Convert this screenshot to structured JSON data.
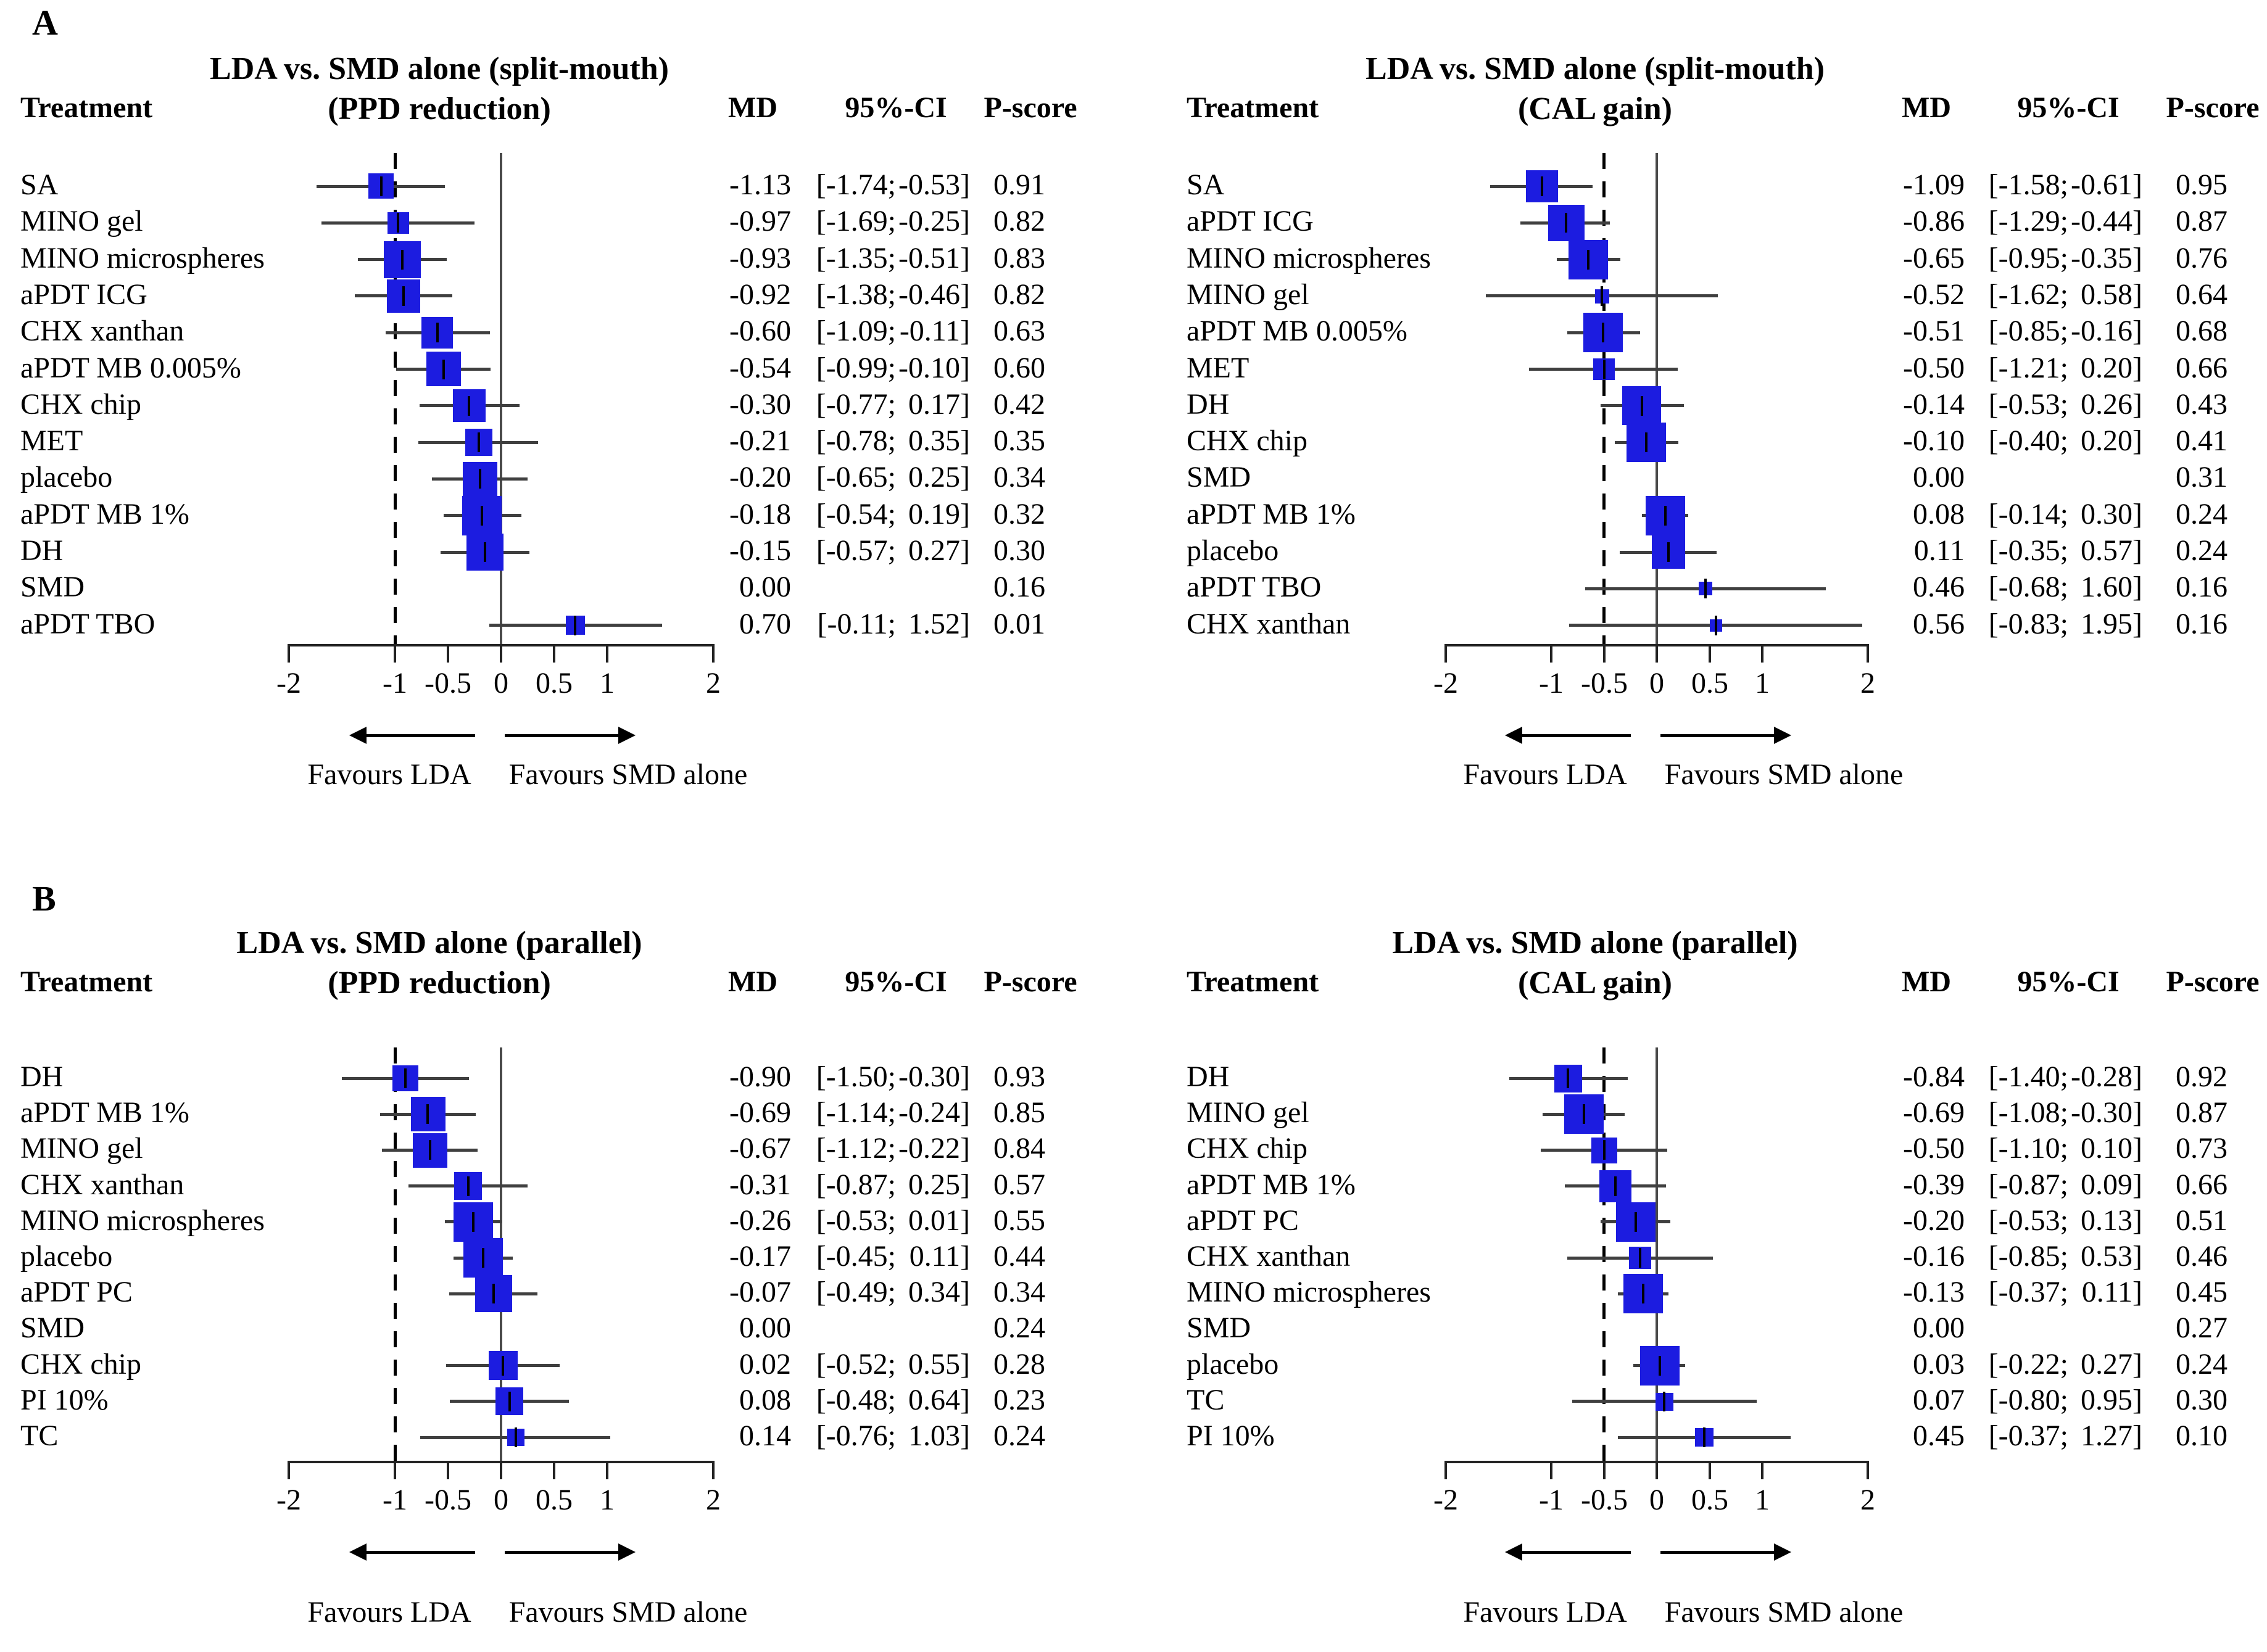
{
  "figure": {
    "panel_a_label": "A",
    "panel_b_label": "B",
    "marker_color": "#1c1ce0",
    "line_color": "#3f3f3f"
  },
  "chart_data": [
    {
      "type": "forest",
      "panel_group": "A",
      "title_line1": "LDA vs. SMD alone (split-mouth)",
      "title_line2": "(PPD reduction)",
      "columns": {
        "treatment": "Treatment",
        "md": "MD",
        "ci": "95%-CI",
        "pscore": "P-score"
      },
      "xlim": [
        -2,
        2
      ],
      "x_ticks": [
        -2,
        -1,
        -0.5,
        0,
        0.5,
        1,
        2
      ],
      "null_line": 0,
      "reference_dashed_line": -1,
      "favours_left": "Favours LDA",
      "favours_right": "Favours SMD alone",
      "rows": [
        {
          "treatment": "SA",
          "md": -1.13,
          "ci_lower": -1.74,
          "ci_upper": -0.53,
          "p_score": "0.91"
        },
        {
          "treatment": "MINO gel",
          "md": -0.97,
          "ci_lower": -1.69,
          "ci_upper": -0.25,
          "p_score": "0.82"
        },
        {
          "treatment": "MINO microspheres",
          "md": -0.93,
          "ci_lower": -1.35,
          "ci_upper": -0.51,
          "p_score": "0.83"
        },
        {
          "treatment": "aPDT ICG",
          "md": -0.92,
          "ci_lower": -1.38,
          "ci_upper": -0.46,
          "p_score": "0.82"
        },
        {
          "treatment": "CHX xanthan",
          "md": -0.6,
          "ci_lower": -1.09,
          "ci_upper": -0.11,
          "p_score": "0.63"
        },
        {
          "treatment": "aPDT MB 0.005%",
          "md": -0.54,
          "ci_lower": -0.99,
          "ci_upper": -0.1,
          "p_score": "0.60"
        },
        {
          "treatment": "CHX chip",
          "md": -0.3,
          "ci_lower": -0.77,
          "ci_upper": 0.17,
          "p_score": "0.42"
        },
        {
          "treatment": "MET",
          "md": -0.21,
          "ci_lower": -0.78,
          "ci_upper": 0.35,
          "p_score": "0.35"
        },
        {
          "treatment": "placebo",
          "md": -0.2,
          "ci_lower": -0.65,
          "ci_upper": 0.25,
          "p_score": "0.34"
        },
        {
          "treatment": "aPDT MB 1%",
          "md": -0.18,
          "ci_lower": -0.54,
          "ci_upper": 0.19,
          "p_score": "0.32"
        },
        {
          "treatment": "DH",
          "md": -0.15,
          "ci_lower": -0.57,
          "ci_upper": 0.27,
          "p_score": "0.30"
        },
        {
          "treatment": "SMD",
          "md": 0.0,
          "ci_lower": null,
          "ci_upper": null,
          "p_score": "0.16"
        },
        {
          "treatment": "aPDT TBO",
          "md": 0.7,
          "ci_lower": -0.11,
          "ci_upper": 1.52,
          "p_score": "0.01"
        }
      ]
    },
    {
      "type": "forest",
      "panel_group": "A",
      "title_line1": "LDA vs. SMD alone (split-mouth)",
      "title_line2": "(CAL gain)",
      "columns": {
        "treatment": "Treatment",
        "md": "MD",
        "ci": "95%-CI",
        "pscore": "P-score"
      },
      "xlim": [
        -2,
        2
      ],
      "x_ticks": [
        -2,
        -1,
        -0.5,
        0,
        0.5,
        1,
        2
      ],
      "null_line": 0,
      "reference_dashed_line": -0.5,
      "favours_left": "Favours LDA",
      "favours_right": "Favours SMD alone",
      "rows": [
        {
          "treatment": "SA",
          "md": -1.09,
          "ci_lower": -1.58,
          "ci_upper": -0.61,
          "p_score": "0.95"
        },
        {
          "treatment": "aPDT ICG",
          "md": -0.86,
          "ci_lower": -1.29,
          "ci_upper": -0.44,
          "p_score": "0.87"
        },
        {
          "treatment": "MINO microspheres",
          "md": -0.65,
          "ci_lower": -0.95,
          "ci_upper": -0.35,
          "p_score": "0.76"
        },
        {
          "treatment": "MINO gel",
          "md": -0.52,
          "ci_lower": -1.62,
          "ci_upper": 0.58,
          "p_score": "0.64"
        },
        {
          "treatment": "aPDT MB 0.005%",
          "md": -0.51,
          "ci_lower": -0.85,
          "ci_upper": -0.16,
          "p_score": "0.68"
        },
        {
          "treatment": "MET",
          "md": -0.5,
          "ci_lower": -1.21,
          "ci_upper": 0.2,
          "p_score": "0.66"
        },
        {
          "treatment": "DH",
          "md": -0.14,
          "ci_lower": -0.53,
          "ci_upper": 0.26,
          "p_score": "0.43"
        },
        {
          "treatment": "CHX chip",
          "md": -0.1,
          "ci_lower": -0.4,
          "ci_upper": 0.2,
          "p_score": "0.41"
        },
        {
          "treatment": "SMD",
          "md": 0.0,
          "ci_lower": null,
          "ci_upper": null,
          "p_score": "0.31"
        },
        {
          "treatment": "aPDT MB 1%",
          "md": 0.08,
          "ci_lower": -0.14,
          "ci_upper": 0.3,
          "p_score": "0.24"
        },
        {
          "treatment": "placebo",
          "md": 0.11,
          "ci_lower": -0.35,
          "ci_upper": 0.57,
          "p_score": "0.24"
        },
        {
          "treatment": "aPDT TBO",
          "md": 0.46,
          "ci_lower": -0.68,
          "ci_upper": 1.6,
          "p_score": "0.16"
        },
        {
          "treatment": "CHX xanthan",
          "md": 0.56,
          "ci_lower": -0.83,
          "ci_upper": 1.95,
          "p_score": "0.16"
        }
      ]
    },
    {
      "type": "forest",
      "panel_group": "B",
      "title_line1": "LDA vs. SMD alone (parallel)",
      "title_line2": "(PPD reduction)",
      "columns": {
        "treatment": "Treatment",
        "md": "MD",
        "ci": "95%-CI",
        "pscore": "P-score"
      },
      "xlim": [
        -2,
        2
      ],
      "x_ticks": [
        -2,
        -1,
        -0.5,
        0,
        0.5,
        1,
        2
      ],
      "null_line": 0,
      "reference_dashed_line": -1,
      "favours_left": "Favours LDA",
      "favours_right": "Favours SMD alone",
      "rows": [
        {
          "treatment": "DH",
          "md": -0.9,
          "ci_lower": -1.5,
          "ci_upper": -0.3,
          "p_score": "0.93"
        },
        {
          "treatment": "aPDT MB 1%",
          "md": -0.69,
          "ci_lower": -1.14,
          "ci_upper": -0.24,
          "p_score": "0.85"
        },
        {
          "treatment": "MINO gel",
          "md": -0.67,
          "ci_lower": -1.12,
          "ci_upper": -0.22,
          "p_score": "0.84"
        },
        {
          "treatment": "CHX xanthan",
          "md": -0.31,
          "ci_lower": -0.87,
          "ci_upper": 0.25,
          "p_score": "0.57"
        },
        {
          "treatment": "MINO microspheres",
          "md": -0.26,
          "ci_lower": -0.53,
          "ci_upper": 0.01,
          "p_score": "0.55"
        },
        {
          "treatment": "placebo",
          "md": -0.17,
          "ci_lower": -0.45,
          "ci_upper": 0.11,
          "p_score": "0.44"
        },
        {
          "treatment": "aPDT PC",
          "md": -0.07,
          "ci_lower": -0.49,
          "ci_upper": 0.34,
          "p_score": "0.34"
        },
        {
          "treatment": "SMD",
          "md": 0.0,
          "ci_lower": null,
          "ci_upper": null,
          "p_score": "0.24"
        },
        {
          "treatment": "CHX chip",
          "md": 0.02,
          "ci_lower": -0.52,
          "ci_upper": 0.55,
          "p_score": "0.28"
        },
        {
          "treatment": "PI 10%",
          "md": 0.08,
          "ci_lower": -0.48,
          "ci_upper": 0.64,
          "p_score": "0.23"
        },
        {
          "treatment": "TC",
          "md": 0.14,
          "ci_lower": -0.76,
          "ci_upper": 1.03,
          "p_score": "0.24"
        }
      ]
    },
    {
      "type": "forest",
      "panel_group": "B",
      "title_line1": "LDA vs. SMD alone (parallel)",
      "title_line2": "(CAL gain)",
      "columns": {
        "treatment": "Treatment",
        "md": "MD",
        "ci": "95%-CI",
        "pscore": "P-score"
      },
      "xlim": [
        -2,
        2
      ],
      "x_ticks": [
        -2,
        -1,
        -0.5,
        0,
        0.5,
        1,
        2
      ],
      "null_line": 0,
      "reference_dashed_line": -0.5,
      "favours_left": "Favours LDA",
      "favours_right": "Favours SMD alone",
      "rows": [
        {
          "treatment": "DH",
          "md": -0.84,
          "ci_lower": -1.4,
          "ci_upper": -0.28,
          "p_score": "0.92"
        },
        {
          "treatment": "MINO gel",
          "md": -0.69,
          "ci_lower": -1.08,
          "ci_upper": -0.3,
          "p_score": "0.87"
        },
        {
          "treatment": "CHX chip",
          "md": -0.5,
          "ci_lower": -1.1,
          "ci_upper": 0.1,
          "p_score": "0.73"
        },
        {
          "treatment": "aPDT MB 1%",
          "md": -0.39,
          "ci_lower": -0.87,
          "ci_upper": 0.09,
          "p_score": "0.66"
        },
        {
          "treatment": "aPDT PC",
          "md": -0.2,
          "ci_lower": -0.53,
          "ci_upper": 0.13,
          "p_score": "0.51"
        },
        {
          "treatment": "CHX xanthan",
          "md": -0.16,
          "ci_lower": -0.85,
          "ci_upper": 0.53,
          "p_score": "0.46"
        },
        {
          "treatment": "MINO microspheres",
          "md": -0.13,
          "ci_lower": -0.37,
          "ci_upper": 0.11,
          "p_score": "0.45"
        },
        {
          "treatment": "SMD",
          "md": 0.0,
          "ci_lower": null,
          "ci_upper": null,
          "p_score": "0.27"
        },
        {
          "treatment": "placebo",
          "md": 0.03,
          "ci_lower": -0.22,
          "ci_upper": 0.27,
          "p_score": "0.24"
        },
        {
          "treatment": "TC",
          "md": 0.07,
          "ci_lower": -0.8,
          "ci_upper": 0.95,
          "p_score": "0.30"
        },
        {
          "treatment": "PI 10%",
          "md": 0.45,
          "ci_lower": -0.37,
          "ci_upper": 1.27,
          "p_score": "0.10"
        }
      ]
    }
  ]
}
